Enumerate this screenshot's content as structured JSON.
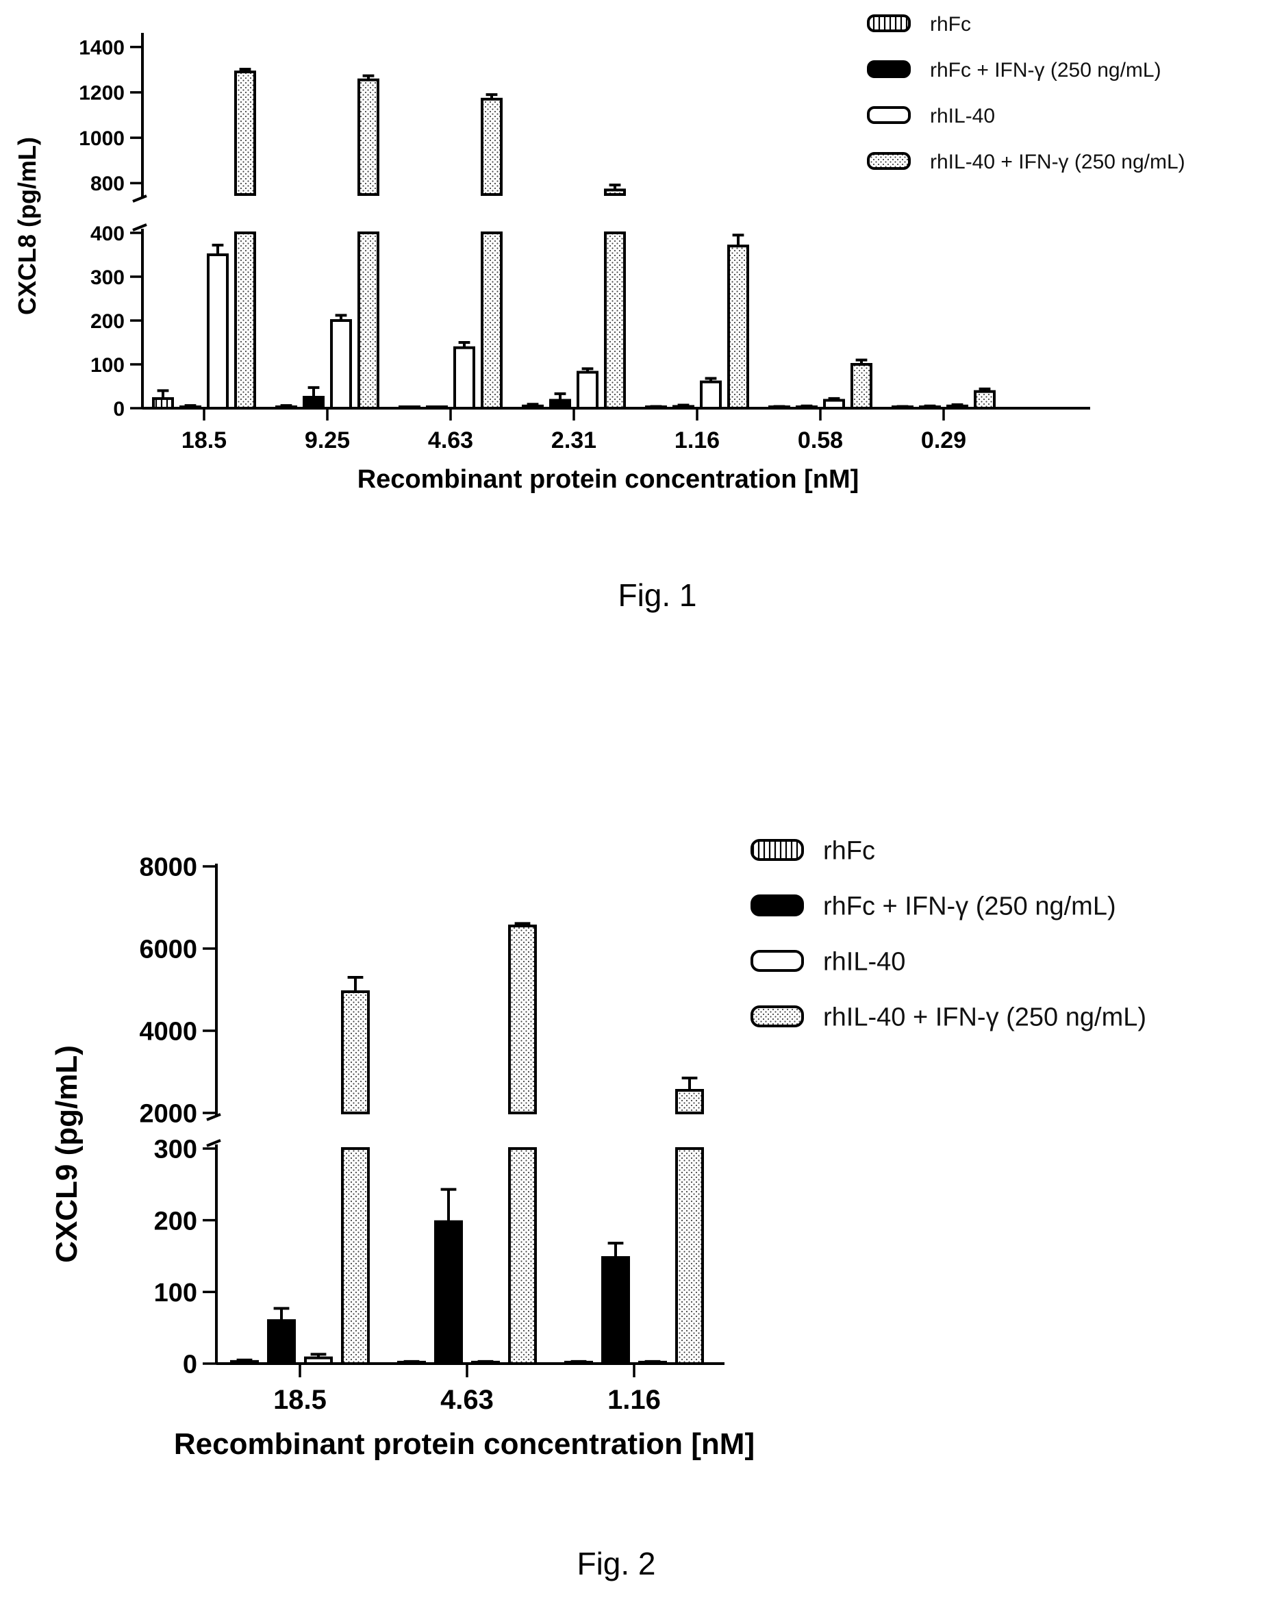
{
  "legend": [
    {
      "name": "rhFc",
      "color": "#ffffff",
      "pattern": "vstripes"
    },
    {
      "name": "rhFc + IFN-γ (250 ng/mL)",
      "color": "#000000",
      "pattern": "solid"
    },
    {
      "name": "rhIL-40",
      "color": "#ffffff",
      "pattern": "hollow"
    },
    {
      "name": "rhIL-40 + IFN-γ (250 ng/mL)",
      "color": "#ffffff",
      "pattern": "dots"
    }
  ],
  "chart_data": [
    {
      "type": "bar",
      "caption": "Fig. 1",
      "xlabel": "Recombinant protein concentration [nM]",
      "ylabel": "CXCL8 (pg/mL)",
      "categories": [
        "18.5",
        "9.25",
        "4.63",
        "2.31",
        "1.16",
        "0.58",
        "0.29"
      ],
      "broken_axis": {
        "lower": [
          0,
          400
        ],
        "upper": [
          750,
          1450
        ]
      },
      "yticks_lower": [
        0,
        100,
        200,
        300,
        400
      ],
      "yticks_upper": [
        800,
        1000,
        1200,
        1400
      ],
      "grid": false,
      "legend_position": "top-right",
      "series": [
        {
          "name": "rhFc",
          "values": [
            22,
            3,
            0,
            5,
            2,
            2,
            2
          ],
          "errors": [
            18,
            3,
            0,
            4,
            2,
            2,
            2
          ]
        },
        {
          "name": "rhFc + IFN-γ (250 ng/mL)",
          "values": [
            3,
            25,
            0,
            18,
            4,
            3,
            3
          ],
          "errors": [
            3,
            22,
            0,
            15,
            3,
            2,
            2
          ]
        },
        {
          "name": "rhIL-40",
          "values": [
            350,
            200,
            138,
            82,
            60,
            18,
            5
          ],
          "errors": [
            22,
            12,
            12,
            8,
            8,
            4,
            3
          ]
        },
        {
          "name": "rhIL-40 + IFN-γ (250 ng/mL)",
          "values": [
            1290,
            1255,
            1170,
            770,
            370,
            100,
            38
          ],
          "errors": [
            12,
            18,
            20,
            22,
            25,
            10,
            6
          ]
        }
      ]
    },
    {
      "type": "bar",
      "caption": "Fig. 2",
      "xlabel": "Recombinant protein concentration [nM]",
      "ylabel": "CXCL9 (pg/mL)",
      "categories": [
        "18.5",
        "4.63",
        "1.16"
      ],
      "broken_axis": {
        "lower": [
          0,
          300
        ],
        "upper": [
          2000,
          8000
        ]
      },
      "yticks_lower": [
        0,
        100,
        200,
        300
      ],
      "yticks_upper": [
        2000,
        4000,
        6000,
        8000
      ],
      "grid": false,
      "legend_position": "top-right",
      "series": [
        {
          "name": "rhFc",
          "values": [
            3,
            2,
            2
          ],
          "errors": [
            2,
            1,
            1
          ]
        },
        {
          "name": "rhFc + IFN-γ (250 ng/mL)",
          "values": [
            60,
            198,
            148
          ],
          "errors": [
            17,
            45,
            20
          ]
        },
        {
          "name": "rhIL-40",
          "values": [
            8,
            2,
            2
          ],
          "errors": [
            5,
            1,
            1
          ]
        },
        {
          "name": "rhIL-40 + IFN-γ (250 ng/mL)",
          "values": [
            4950,
            6550,
            2550
          ],
          "errors": [
            350,
            60,
            300
          ]
        }
      ]
    }
  ]
}
